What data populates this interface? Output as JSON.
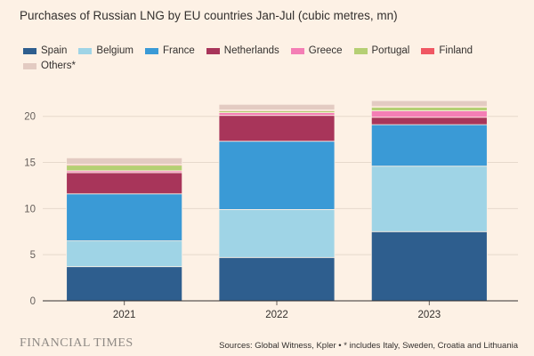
{
  "title": "Purchases of Russian LNG by EU countries Jan-Jul (cubic metres, mn)",
  "footer": {
    "brand": "FINANCIAL TIMES",
    "source": "Sources: Global Witness, Kpler • * includes Italy, Sweden, Croatia and Lithuania"
  },
  "chart_data": {
    "type": "bar",
    "stacked": true,
    "title": "Purchases of Russian LNG by EU countries Jan-Jul (cubic metres, mn)",
    "xlabel": "",
    "ylabel": "",
    "categories": [
      "2021",
      "2022",
      "2023"
    ],
    "yticks": [
      0,
      5,
      10,
      15,
      20
    ],
    "ylim": [
      0,
      22
    ],
    "grid": true,
    "legend_position": "top",
    "series": [
      {
        "name": "Spain",
        "color": "#2e5e8e",
        "values": [
          3.7,
          4.7,
          7.5
        ]
      },
      {
        "name": "Belgium",
        "color": "#9fd4e6",
        "values": [
          2.8,
          5.2,
          7.1
        ]
      },
      {
        "name": "France",
        "color": "#3a9ad6",
        "values": [
          5.1,
          7.4,
          4.5
        ]
      },
      {
        "name": "Netherlands",
        "color": "#a8355a",
        "values": [
          2.3,
          2.8,
          0.8
        ]
      },
      {
        "name": "Greece",
        "color": "#f47eb5",
        "values": [
          0.2,
          0.3,
          0.7
        ]
      },
      {
        "name": "Portugal",
        "color": "#b5cf74",
        "values": [
          0.6,
          0.2,
          0.4
        ]
      },
      {
        "name": "Finland",
        "color": "#f05763",
        "values": [
          0.1,
          0.1,
          0.1
        ]
      },
      {
        "name": "Others*",
        "color": "#e3cbc2",
        "values": [
          0.7,
          0.6,
          0.6
        ]
      }
    ]
  }
}
